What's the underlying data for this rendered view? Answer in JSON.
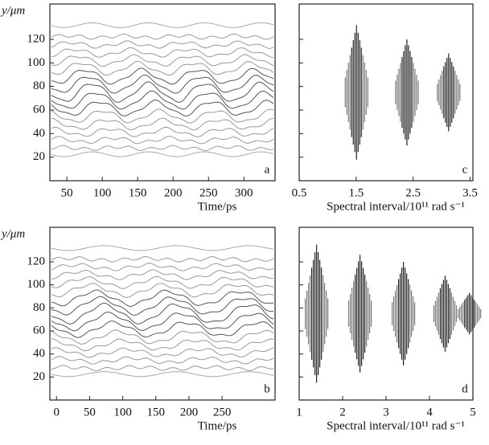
{
  "chart_data": [
    {
      "type": "contour",
      "panel_label": "a",
      "ylabel": "y/μm",
      "xlabel": "Time/ps",
      "xlim": [
        26,
        344
      ],
      "ylim": [
        0,
        150
      ],
      "xticks": [
        50,
        100,
        150,
        200,
        250,
        300
      ],
      "yticks": [
        20,
        40,
        60,
        80,
        100,
        120
      ]
    },
    {
      "type": "contour",
      "panel_label": "b",
      "ylabel": "y/μm",
      "xlabel": "Time/ps",
      "xlim": [
        -10,
        330
      ],
      "ylim": [
        0,
        150
      ],
      "xticks": [
        0,
        50,
        100,
        150,
        200,
        250
      ],
      "yticks": [
        20,
        40,
        60,
        80,
        100,
        120
      ]
    },
    {
      "type": "contour",
      "panel_label": "c",
      "xlabel": "Spectral interval/10¹¹ rad s⁻¹",
      "xlim": [
        0.5,
        3.55
      ],
      "ylim": [
        0,
        150
      ],
      "xticks": [
        0.5,
        1.5,
        2.5,
        3.5
      ],
      "yticks": [
        20,
        40,
        60,
        80,
        100,
        120
      ]
    },
    {
      "type": "contour",
      "panel_label": "d",
      "xlabel": "Spectral interval/10¹¹ rad s⁻¹",
      "xlim": [
        1,
        5
      ],
      "ylim": [
        0,
        150
      ],
      "xticks": [
        1,
        2,
        3,
        4,
        5
      ],
      "yticks": [
        20,
        40,
        60,
        80,
        100,
        120
      ]
    }
  ]
}
